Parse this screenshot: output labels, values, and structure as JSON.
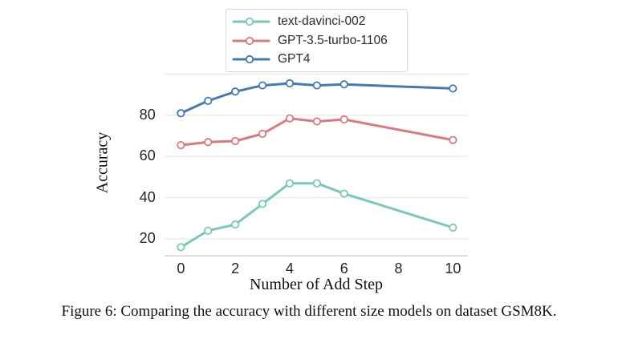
{
  "caption": "Figure 6: Comparing the accuracy with different size models on dataset GSM8K.",
  "colors": {
    "background": "#ffffff",
    "grid": "#e9e9e9",
    "axis_line": "#cccccc",
    "tick_text": "#262626",
    "label_text": "#111111",
    "legend_border": "#d9d9d9",
    "marker_fill": "#ffffff"
  },
  "chart_data": {
    "type": "line",
    "title": "",
    "xlabel": "Number of Add Step",
    "ylabel": "Accuracy",
    "x": [
      0,
      1,
      2,
      3,
      4,
      5,
      6,
      10
    ],
    "series": [
      {
        "name": "text-davinci-002",
        "color": "#7cc6bd",
        "values": [
          16,
          24,
          27,
          37,
          47,
          47,
          42,
          25.5
        ]
      },
      {
        "name": "GPT-3.5-turbo-1106",
        "color": "#d97984",
        "values": [
          65.5,
          67,
          67.5,
          71,
          78.5,
          77,
          78,
          68
        ]
      },
      {
        "name": "GPT4",
        "color": "#4579b2",
        "values": [
          81,
          87,
          91.5,
          94.5,
          95.5,
          94.5,
          95,
          93
        ]
      }
    ],
    "xticks": [
      0,
      2,
      4,
      6,
      8,
      10
    ],
    "yticks": [
      20,
      40,
      60,
      80
    ],
    "gridlines_y": [
      20,
      40,
      60,
      80,
      100
    ],
    "xlim": [
      -0.6,
      10.55
    ],
    "ylim": [
      11.5,
      102.5
    ],
    "grid": true,
    "legend_position": "top-center",
    "marker": "open-circle"
  }
}
